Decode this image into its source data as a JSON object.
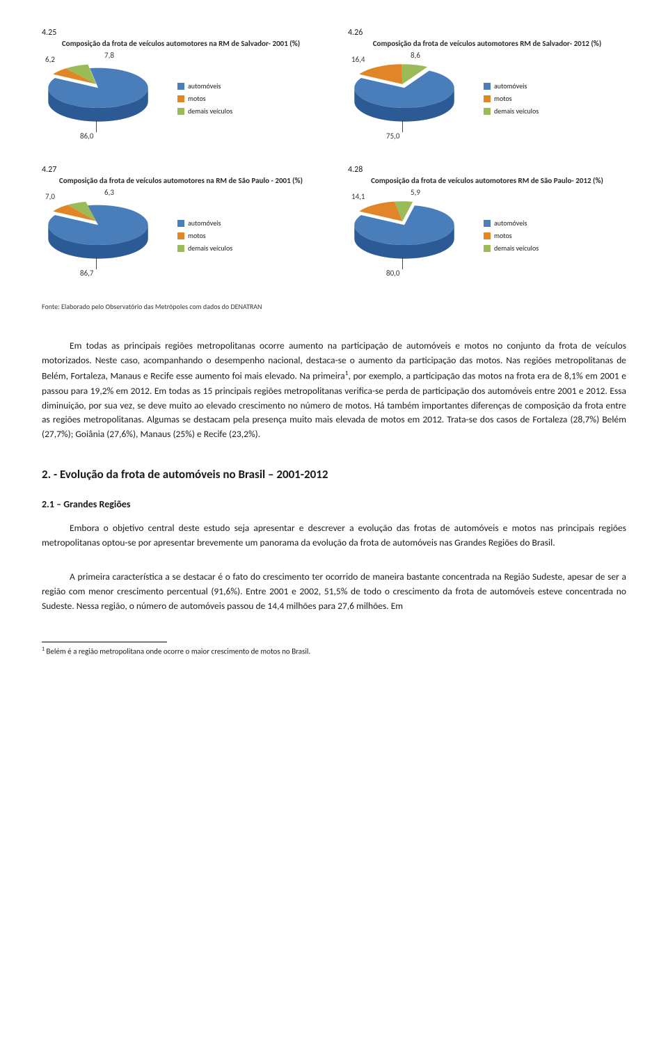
{
  "charts": {
    "c425": {
      "fignum": "4.25",
      "title": "Composição da frota de veículos automotores na RM de Salvador- 2001 (%)",
      "data": {
        "automoveis": 86.0,
        "motos": 6.2,
        "demais": 7.8
      },
      "labels": {
        "automoveis": "86,0",
        "motos": "6,2",
        "demais": "7,8"
      }
    },
    "c426": {
      "fignum": "4.26",
      "title": "Composição da frota de veículos automotores RM de Salvador- 2012 (%)",
      "data": {
        "automoveis": 75.0,
        "motos": 16.4,
        "demais": 8.6
      },
      "labels": {
        "automoveis": "75,0",
        "motos": "16,4",
        "demais": "8,6"
      }
    },
    "c427": {
      "fignum": "4.27",
      "title": "Composição da frota de veículos automotores na RM de São Paulo - 2001 (%)",
      "data": {
        "automoveis": 86.7,
        "motos": 7.0,
        "demais": 6.3
      },
      "labels": {
        "automoveis": "86,7",
        "motos": "7,0",
        "demais": "6,3"
      }
    },
    "c428": {
      "fignum": "4.28",
      "title": "Composição da frota de veículos automotores RM de São Paulo- 2012 (%)",
      "data": {
        "automoveis": 80.0,
        "motos": 14.1,
        "demais": 5.9
      },
      "labels": {
        "automoveis": "80,0",
        "motos": "14,1",
        "demais": "5,9"
      }
    },
    "colors": {
      "automoveis": "#4a7ebb",
      "automoveis_side": "#2c5a94",
      "motos": "#e08628",
      "motos_side": "#b56818",
      "demais": "#9bbb59",
      "demais_side": "#76923c"
    },
    "legend": {
      "automoveis": "automóveis",
      "motos": "motos",
      "demais": "demais veículos"
    }
  },
  "source": "Fonte: Elaborado pelo Observatório das Metrópoles com dados do DENATRAN",
  "para1_a": "Em todas as principais regiões metropolitanas ocorre aumento na participação de automóveis e motos no conjunto da frota de veículos motorizados. Neste caso, acompanhando o desempenho nacional, destaca-se o aumento da participação das motos. Nas regiões metropolitanas de Belém, Fortaleza, Manaus e Recife esse aumento foi mais elevado. Na primeira",
  "para1_b": ", por exemplo, a participação das motos na frota era de 8,1% em 2001 e passou para 19,2% em 2012. Em todas as 15 principais regiões metropolitanas verifica-se perda de participação dos automóveis entre 2001 e 2012. Essa diminuição, por sua vez, se deve muito ao elevado crescimento no número de motos. Há também importantes diferenças de composição da frota entre as regiões metropolitanas. Algumas se destacam pela presença muito mais elevada de motos em 2012. Trata-se dos casos de Fortaleza (28,7%) Belém (27,7%); Goiânia (27,6%), Manaus (25%) e Recife (23,2%).",
  "sec2": "2.  - Evolução da frota de automóveis no Brasil – 2001-2012",
  "sub21": "2.1 – Grandes Regiões",
  "para2": "Embora o objetivo central deste estudo seja apresentar e descrever a evolução das frotas de automóveis e motos nas principais regiões metropolitanas optou-se por apresentar brevemente um panorama da evolução da frota de automóveis nas Grandes Regiões do Brasil.",
  "para3": "A primeira característica a se destacar é o fato do crescimento ter ocorrido de maneira bastante concentrada na Região Sudeste, apesar de ser a região com menor crescimento percentual (91,6%). Entre 2001 e 2002, 51,5% de todo o crescimento da frota de automóveis esteve concentrada no Sudeste. Nessa região, o número de automóveis passou de 14,4 milhões para 27,6 milhões. Em",
  "footnote_num": "1",
  "footnote": " Belém é a região metropolitana onde ocorre o maior crescimento de motos no Brasil."
}
